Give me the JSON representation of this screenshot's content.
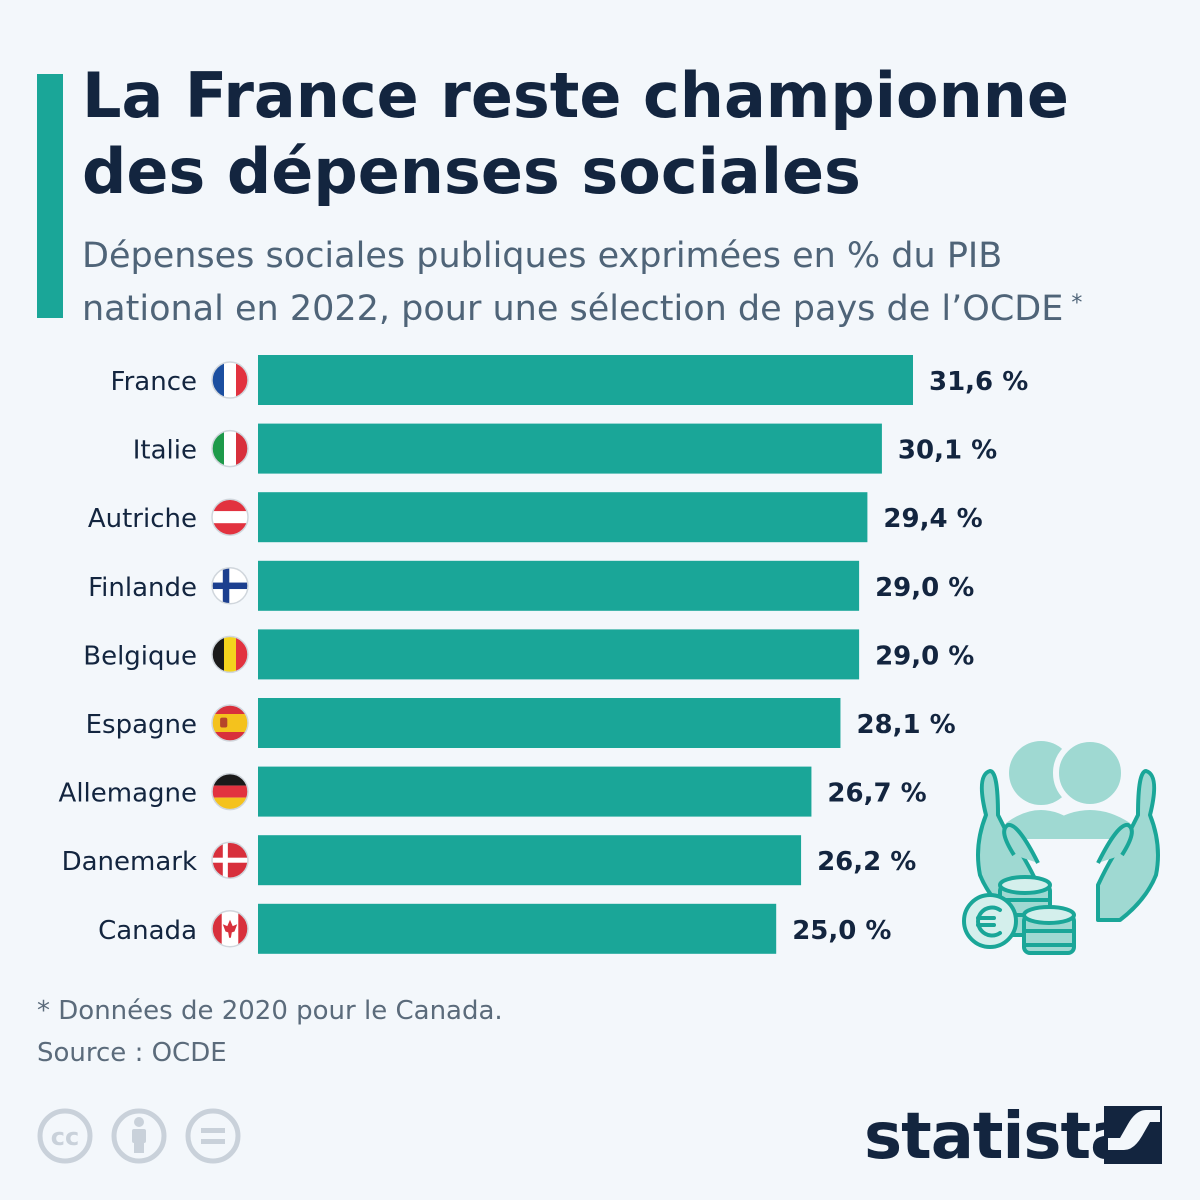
{
  "colors": {
    "background": "#f3f7fb",
    "accent": "#1aa698",
    "bar": "#1aa698",
    "title": "#13253f",
    "subtitle": "#4f6478",
    "label": "#13253f",
    "muted": "#5b6b7b",
    "icon_light": "#9fd9d2",
    "icon_stroke": "#1aa698"
  },
  "header": {
    "title_line1": "La France reste championne",
    "title_line2": "des dépenses sociales",
    "subtitle_line1": "Dépenses sociales publiques exprimées en % du PIB",
    "subtitle_line2": "national en 2022, pour une sélection de pays de l’OCDE",
    "subtitle_marker": "*"
  },
  "chart_data": {
    "type": "bar",
    "orientation": "horizontal",
    "categories": [
      "France",
      "Italie",
      "Autriche",
      "Finlande",
      "Belgique",
      "Espagne",
      "Allemagne",
      "Danemark",
      "Canada"
    ],
    "values": [
      31.6,
      30.1,
      29.4,
      29.0,
      29.0,
      28.1,
      26.7,
      26.2,
      25.0
    ],
    "value_labels": [
      "31,6 %",
      "30,1 %",
      "29,4 %",
      "29,0 %",
      "29,0 %",
      "28,1 %",
      "26,7 %",
      "26,2 %",
      "25,0 %"
    ],
    "flags": [
      "france-flag-icon",
      "italy-flag-icon",
      "austria-flag-icon",
      "finland-flag-icon",
      "belgium-flag-icon",
      "spain-flag-icon",
      "germany-flag-icon",
      "denmark-flag-icon",
      "canada-flag-icon"
    ],
    "xlim": [
      0,
      31.6
    ],
    "grid": false,
    "legend": "none"
  },
  "footnote": {
    "note": "* Données de 2020 pour le Canada.",
    "source": "Source : OCDE"
  },
  "license_icons": [
    "cc-icon",
    "attribution-icon",
    "no-derivatives-icon"
  ],
  "brand": {
    "name": "statista",
    "logo_icon": "statista-logo-icon"
  },
  "illustration": {
    "icon": "hands-people-coins-euro-icon"
  }
}
